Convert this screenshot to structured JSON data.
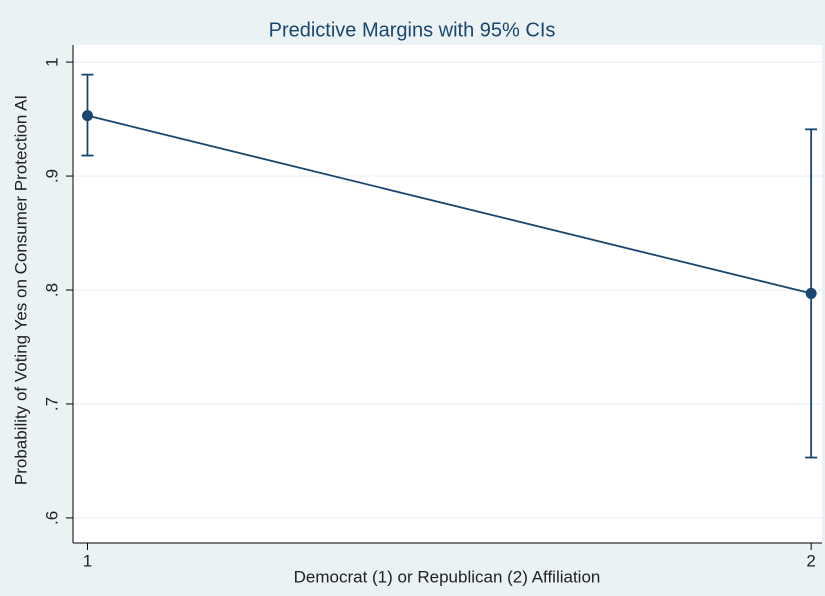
{
  "chart_data": {
    "type": "line",
    "title": "Predictive Margins with 95% CIs",
    "x_label": "Democrat (1) or Republican (2) Affiliation",
    "y_label": "Probability of Voting Yes on Consumer Protection AI",
    "x": [
      1,
      2
    ],
    "series": [
      {
        "name": "Predictive margin",
        "color": "#1a476f",
        "values": [
          0.953,
          0.797
        ],
        "ci_lower": [
          0.918,
          0.653
        ],
        "ci_upper": [
          0.989,
          0.941
        ]
      }
    ],
    "xlim": [
      0.98,
      2.015
    ],
    "xticks": [
      1,
      2
    ],
    "ylim": [
      0.578,
      1.015
    ],
    "yticks": [
      {
        "value": 0.6,
        "label": ".6"
      },
      {
        "value": 0.7,
        "label": ".7"
      },
      {
        "value": 0.8,
        "label": ".8"
      },
      {
        "value": 0.9,
        "label": ".9"
      },
      1
    ],
    "grid": true
  }
}
